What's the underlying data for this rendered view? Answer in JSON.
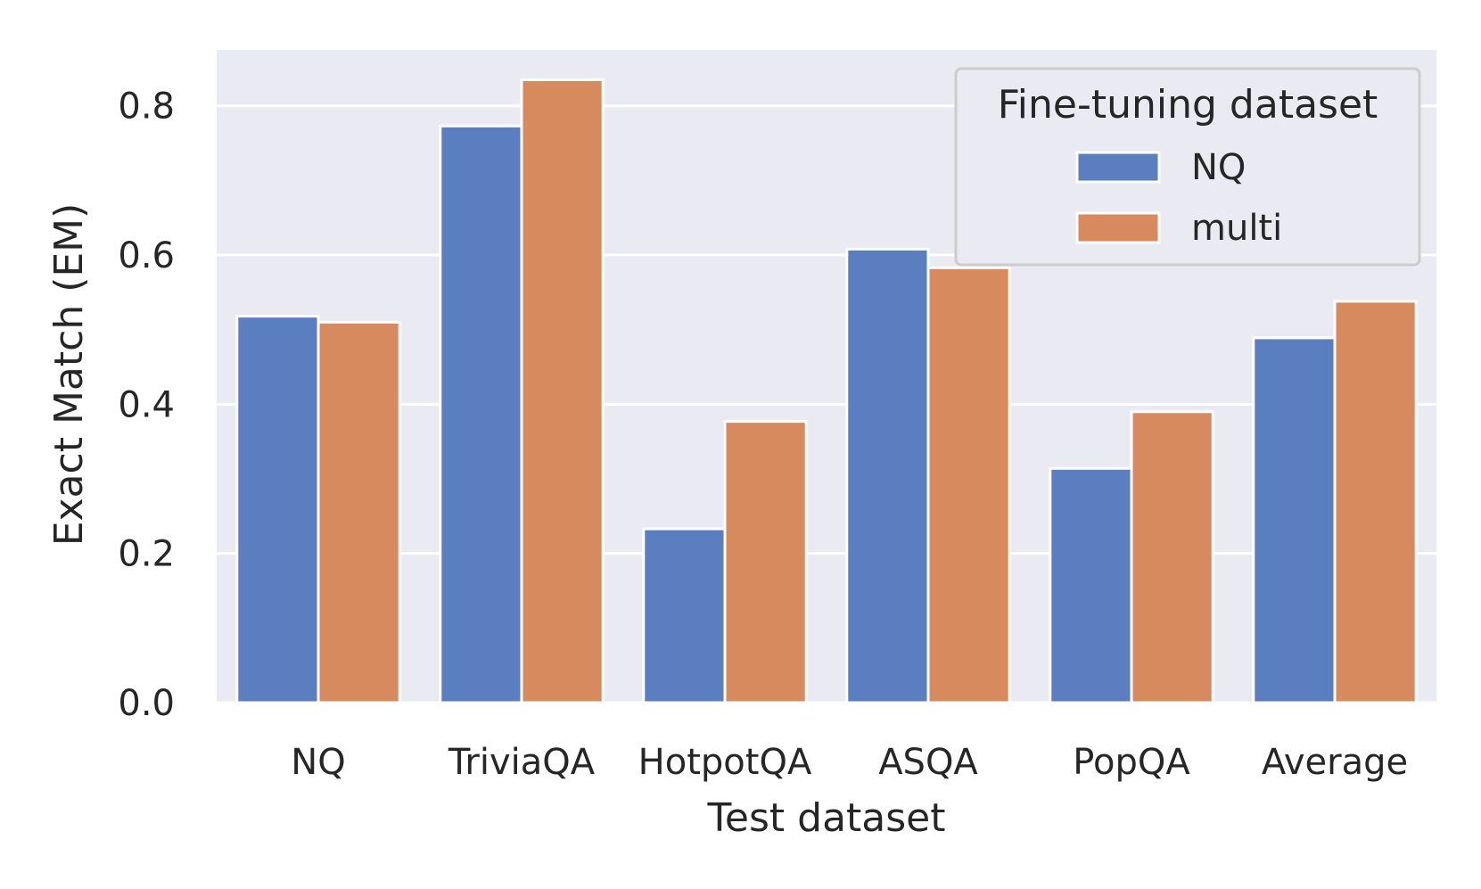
{
  "chart_data": {
    "type": "bar",
    "xlabel": "Test dataset",
    "ylabel": "Exact Match (EM)",
    "categories": [
      "NQ",
      "TriviaQA",
      "HotpotQA",
      "ASQA",
      "PopQA",
      "Average"
    ],
    "series": [
      {
        "name": "NQ",
        "color": "#5b7ec0",
        "values": [
          0.518,
          0.773,
          0.233,
          0.608,
          0.314,
          0.489
        ]
      },
      {
        "name": "multi",
        "color": "#d88a5f",
        "values": [
          0.51,
          0.835,
          0.377,
          0.583,
          0.39,
          0.538
        ]
      }
    ],
    "ylim": [
      0,
      0.875
    ],
    "yticks": [
      0.0,
      0.2,
      0.4,
      0.6,
      0.8
    ],
    "ytick_labels": [
      "0.0",
      "0.2",
      "0.4",
      "0.6",
      "0.8"
    ],
    "legend": {
      "title": "Fine-tuning dataset",
      "placement": "top-right"
    },
    "grid": true,
    "background": "#eaeaf2"
  }
}
